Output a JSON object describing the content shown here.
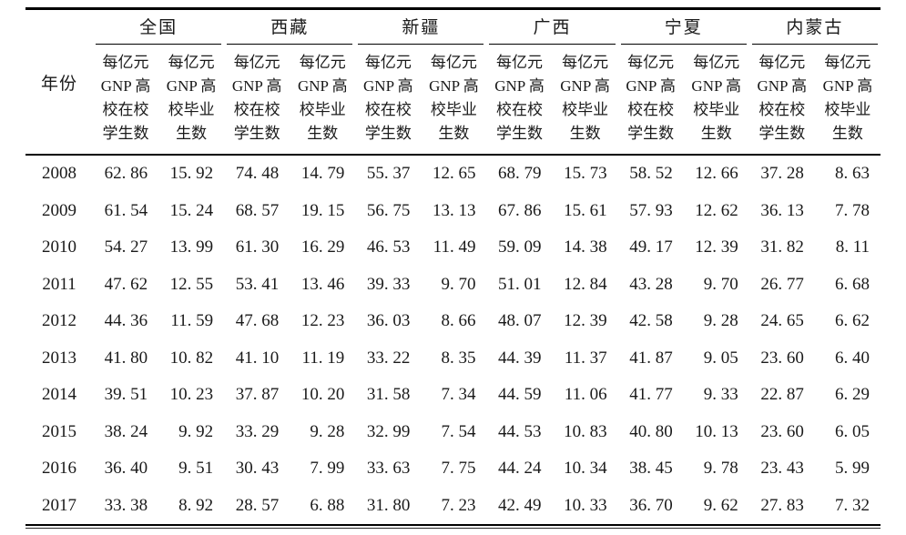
{
  "table": {
    "year_header": "年份",
    "groups": [
      {
        "name": "全国"
      },
      {
        "name": "西藏"
      },
      {
        "name": "新疆"
      },
      {
        "name": "广西"
      },
      {
        "name": "宁夏"
      },
      {
        "name": "内蒙古"
      }
    ],
    "sub_enrolled": "每亿元\nGNP 高\n校在校\n学生数",
    "sub_graduates": "每亿元\nGNP 高\n校毕业\n生数",
    "rows": [
      {
        "year": "2008",
        "values": [
          "62.86",
          "15.92",
          "74.48",
          "14.79",
          "55.37",
          "12.65",
          "68.79",
          "15.73",
          "58.52",
          "12.66",
          "37.28",
          "8.63"
        ]
      },
      {
        "year": "2009",
        "values": [
          "61.54",
          "15.24",
          "68.57",
          "19.15",
          "56.75",
          "13.13",
          "67.86",
          "15.61",
          "57.93",
          "12.62",
          "36.13",
          "7.78"
        ]
      },
      {
        "year": "2010",
        "values": [
          "54.27",
          "13.99",
          "61.30",
          "16.29",
          "46.53",
          "11.49",
          "59.09",
          "14.38",
          "49.17",
          "12.39",
          "31.82",
          "8.11"
        ]
      },
      {
        "year": "2011",
        "values": [
          "47.62",
          "12.55",
          "53.41",
          "13.46",
          "39.33",
          "9.70",
          "51.01",
          "12.84",
          "43.28",
          "9.70",
          "26.77",
          "6.68"
        ]
      },
      {
        "year": "2012",
        "values": [
          "44.36",
          "11.59",
          "47.68",
          "12.23",
          "36.03",
          "8.66",
          "48.07",
          "12.39",
          "42.58",
          "9.28",
          "24.65",
          "6.62"
        ]
      },
      {
        "year": "2013",
        "values": [
          "41.80",
          "10.82",
          "41.10",
          "11.19",
          "33.22",
          "8.35",
          "44.39",
          "11.37",
          "41.87",
          "9.05",
          "23.60",
          "6.40"
        ]
      },
      {
        "year": "2014",
        "values": [
          "39.51",
          "10.23",
          "37.87",
          "10.20",
          "31.58",
          "7.34",
          "44.59",
          "11.06",
          "41.77",
          "9.33",
          "22.87",
          "6.29"
        ]
      },
      {
        "year": "2015",
        "values": [
          "38.24",
          "9.92",
          "33.29",
          "9.28",
          "32.99",
          "7.54",
          "44.53",
          "10.83",
          "40.80",
          "10.13",
          "23.60",
          "6.05"
        ]
      },
      {
        "year": "2016",
        "values": [
          "36.40",
          "9.51",
          "30.43",
          "7.99",
          "33.63",
          "7.75",
          "44.24",
          "10.34",
          "38.45",
          "9.78",
          "23.43",
          "5.99"
        ]
      },
      {
        "year": "2017",
        "values": [
          "33.38",
          "8.92",
          "28.57",
          "6.88",
          "31.80",
          "7.23",
          "42.49",
          "10.33",
          "36.70",
          "9.62",
          "27.83",
          "7.32"
        ]
      }
    ]
  }
}
